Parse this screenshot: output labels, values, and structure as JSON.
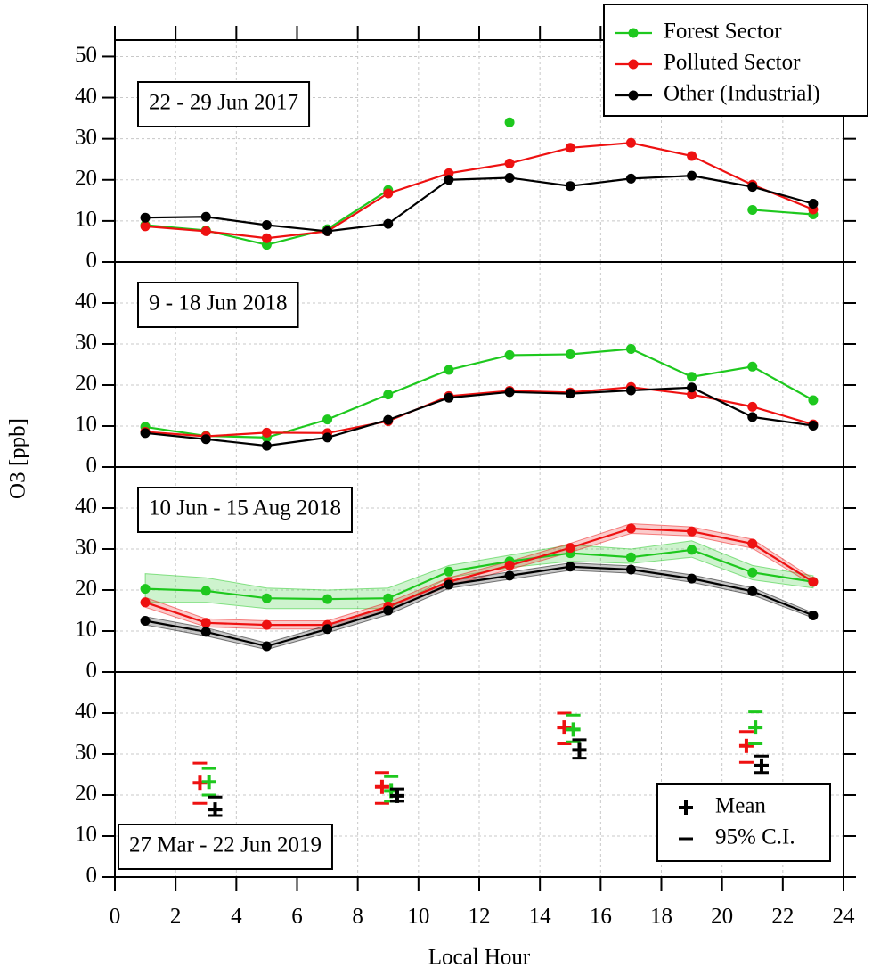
{
  "chart_data": [
    {
      "type": "line",
      "label": "22 - 29 Jun 2017",
      "x": [
        1,
        3,
        5,
        7,
        9,
        11,
        13,
        15,
        17,
        19,
        21,
        23
      ],
      "ylim": [
        0,
        54
      ],
      "yticks": [
        0,
        10,
        20,
        30,
        40,
        50
      ],
      "grid": true,
      "legend": "top-right",
      "series": [
        {
          "name": "Forest Sector",
          "color": "#1ec81e",
          "values": [
            9,
            7.7,
            4.2,
            8,
            17.5,
            null,
            34,
            null,
            null,
            null,
            12.7,
            11.6
          ]
        },
        {
          "name": "Polluted Sector",
          "color": "#ee1111",
          "values": [
            8.7,
            7.5,
            5.8,
            7.5,
            16.7,
            21.6,
            24,
            27.8,
            29,
            25.8,
            18.8,
            12.8
          ]
        },
        {
          "name": "Other (Industrial)",
          "color": "#000000",
          "values": [
            10.8,
            11,
            9,
            7.5,
            9.3,
            20,
            20.5,
            18.5,
            20.3,
            21,
            18.3,
            14.2
          ]
        }
      ]
    },
    {
      "type": "line",
      "label": "9 - 18 Jun 2018",
      "x": [
        1,
        3,
        5,
        7,
        9,
        11,
        13,
        15,
        17,
        19,
        21,
        23
      ],
      "ylim": [
        0,
        50
      ],
      "yticks": [
        0,
        10,
        20,
        30,
        40
      ],
      "grid": true,
      "series": [
        {
          "name": "Forest Sector",
          "color": "#1ec81e",
          "values": [
            9.8,
            7.6,
            7.2,
            11.6,
            17.7,
            23.7,
            27.3,
            27.5,
            28.8,
            22,
            24.5,
            16.3
          ]
        },
        {
          "name": "Polluted Sector",
          "color": "#ee1111",
          "values": [
            8.6,
            7.5,
            8.4,
            8.3,
            11.2,
            17.3,
            18.6,
            18.2,
            19.5,
            17.7,
            14.7,
            10.4
          ]
        },
        {
          "name": "Other (Industrial)",
          "color": "#000000",
          "values": [
            8.3,
            6.8,
            5.2,
            7.2,
            11.5,
            16.9,
            18.3,
            17.9,
            18.7,
            19.4,
            12.2,
            10.1
          ]
        }
      ]
    },
    {
      "type": "line",
      "label": "10 Jun - 15 Aug 2018",
      "x": [
        1,
        3,
        5,
        7,
        9,
        11,
        13,
        15,
        17,
        19,
        21,
        23
      ],
      "ylim": [
        0,
        50
      ],
      "yticks": [
        0,
        10,
        20,
        30,
        40
      ],
      "grid": true,
      "series": [
        {
          "name": "Forest Sector",
          "color": "#1ec81e",
          "values": [
            20.3,
            19.8,
            18,
            17.8,
            18,
            24.5,
            27,
            29,
            28,
            29.8,
            24.3,
            22
          ],
          "lower": [
            17,
            17,
            15.5,
            15.5,
            15.5,
            23,
            25.5,
            27,
            26.5,
            28,
            22.5,
            20.5
          ],
          "upper": [
            24,
            23,
            20.5,
            20,
            20.5,
            26,
            28.5,
            31,
            30,
            32,
            26,
            23.5
          ]
        },
        {
          "name": "Polluted Sector",
          "color": "#ee1111",
          "values": [
            17,
            12,
            11.5,
            11.5,
            16,
            22,
            26,
            30.3,
            35,
            34.3,
            31.3,
            22
          ],
          "lower": [
            15.8,
            11,
            10.5,
            10.5,
            15,
            21,
            25,
            29.2,
            33.8,
            33.2,
            30.2,
            21.2
          ],
          "upper": [
            18.2,
            13,
            12.5,
            12.5,
            17,
            23,
            27,
            31.4,
            36.2,
            35.4,
            32.4,
            22.8
          ]
        },
        {
          "name": "Other (Industrial)",
          "color": "#000000",
          "values": [
            12.5,
            9.8,
            6.3,
            10.5,
            15,
            21.3,
            23.5,
            25.7,
            25,
            22.8,
            19.7,
            13.8
          ],
          "lower": [
            11.5,
            8.8,
            5.5,
            9.6,
            14,
            20.4,
            22.6,
            24.8,
            24.1,
            21.9,
            18.8,
            13.2
          ],
          "upper": [
            13.5,
            10.8,
            7.1,
            11.4,
            16,
            22.2,
            24.4,
            26.6,
            25.9,
            23.7,
            20.6,
            14.4
          ]
        }
      ]
    },
    {
      "type": "errorbar",
      "label": "27 Mar - 22 Jun 2019",
      "xlim": [
        0,
        24
      ],
      "xticks": [
        0,
        2,
        4,
        6,
        8,
        10,
        12,
        14,
        16,
        18,
        20,
        22,
        24
      ],
      "ylim": [
        0,
        50
      ],
      "yticks": [
        0,
        10,
        20,
        30,
        40
      ],
      "grid": true,
      "xlabel": "Local Hour",
      "ylabel": "O3 [ppb]",
      "legend_items": [
        "Mean",
        "95% C.I."
      ],
      "legend": "bottom-right",
      "series": [
        {
          "name": "Polluted Sector",
          "color": "#ee1111",
          "x": [
            2.8,
            8.8,
            14.8,
            20.8
          ],
          "values": [
            23,
            22,
            36.5,
            32
          ],
          "ci_low": [
            18,
            18,
            32.5,
            28
          ],
          "ci_high": [
            27.8,
            25.5,
            40,
            35.5
          ]
        },
        {
          "name": "Forest Sector",
          "color": "#1ec81e",
          "x": [
            3.1,
            9.1,
            15.1,
            21.1
          ],
          "values": [
            23.2,
            21,
            36,
            36.5
          ],
          "ci_low": [
            20,
            18.5,
            33,
            32.5
          ],
          "ci_high": [
            26.5,
            24.5,
            39.5,
            40.3
          ]
        },
        {
          "name": "Other (Industrial)",
          "color": "#000000",
          "x": [
            3.3,
            9.3,
            15.3,
            21.3
          ],
          "values": [
            16.5,
            19.8,
            31,
            27.2
          ],
          "ci_low": [
            15,
            18.5,
            29,
            25.5
          ],
          "ci_high": [
            19.5,
            21.5,
            33.5,
            29.5
          ]
        }
      ]
    }
  ]
}
